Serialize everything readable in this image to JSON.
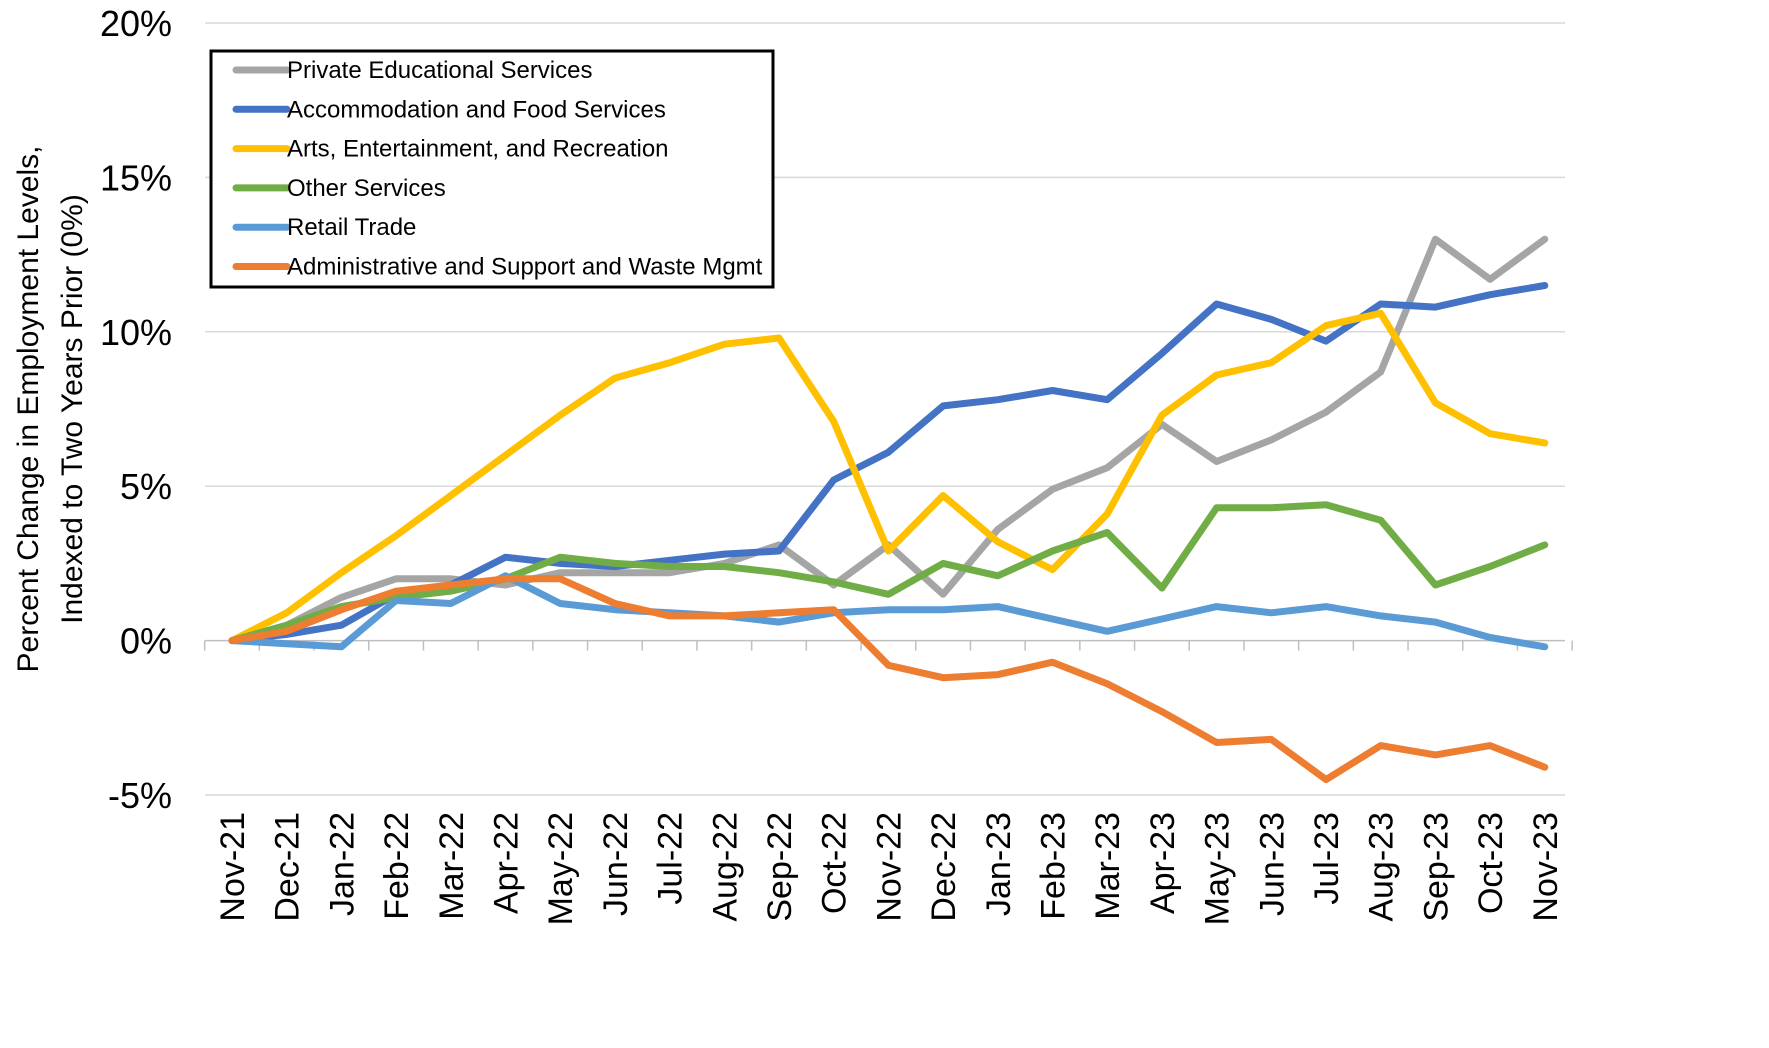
{
  "chart_data": {
    "type": "line",
    "title": "",
    "xlabel": "",
    "ylabel_lines": [
      "Percent Change in Employment Levels,",
      "Indexed to Two Years Prior (0%)"
    ],
    "ylim": [
      -5,
      20
    ],
    "yticks": [
      -5,
      0,
      5,
      10,
      15,
      20
    ],
    "ytick_labels": [
      "-5%",
      "0%",
      "5%",
      "10%",
      "15%",
      "20%"
    ],
    "grid": true,
    "legend_position": "top-left",
    "categories": [
      "Nov-21",
      "Dec-21",
      "Jan-22",
      "Feb-22",
      "Mar-22",
      "Apr-22",
      "May-22",
      "Jun-22",
      "Jul-22",
      "Aug-22",
      "Sep-22",
      "Oct-22",
      "Nov-22",
      "Dec-22",
      "Jan-23",
      "Feb-23",
      "Mar-23",
      "Apr-23",
      "May-23",
      "Jun-23",
      "Jul-23",
      "Aug-23",
      "Sep-23",
      "Oct-23",
      "Nov-23"
    ],
    "series": [
      {
        "name": "Private Educational Services",
        "color": "#a5a5a5",
        "values": [
          0,
          0.5,
          1.4,
          2.0,
          2.0,
          1.8,
          2.2,
          2.2,
          2.2,
          2.5,
          3.1,
          1.8,
          3.1,
          1.5,
          3.6,
          4.9,
          5.6,
          7.0,
          5.8,
          6.5,
          7.4,
          8.7,
          13.0,
          11.7,
          13.0
        ]
      },
      {
        "name": "Accommodation and Food Services",
        "color": "#4472c4",
        "values": [
          0,
          0.2,
          0.5,
          1.5,
          1.8,
          2.7,
          2.5,
          2.4,
          2.6,
          2.8,
          2.9,
          5.2,
          6.1,
          7.6,
          7.8,
          8.1,
          7.8,
          9.3,
          10.9,
          10.4,
          9.7,
          10.9,
          10.8,
          11.2,
          11.5
        ]
      },
      {
        "name": "Arts, Entertainment, and Recreation",
        "color": "#ffc000",
        "values": [
          0,
          0.9,
          2.2,
          3.4,
          4.7,
          6.0,
          7.3,
          8.5,
          9.0,
          9.6,
          9.8,
          7.1,
          2.9,
          4.7,
          3.2,
          2.3,
          4.1,
          7.3,
          8.6,
          9.0,
          10.2,
          10.6,
          7.7,
          6.7,
          6.4
        ]
      },
      {
        "name": "Other Services",
        "color": "#70ad47",
        "values": [
          0,
          0.5,
          1.1,
          1.4,
          1.6,
          2.0,
          2.7,
          2.5,
          2.4,
          2.4,
          2.2,
          1.9,
          1.5,
          2.5,
          2.1,
          2.9,
          3.5,
          1.7,
          4.3,
          4.3,
          4.4,
          3.9,
          1.8,
          2.4,
          3.1
        ]
      },
      {
        "name": "Retail Trade",
        "color": "#5b9bd5",
        "values": [
          0,
          -0.1,
          -0.2,
          1.3,
          1.2,
          2.1,
          1.2,
          1.0,
          0.9,
          0.8,
          0.6,
          0.9,
          1.0,
          1.0,
          1.1,
          0.7,
          0.3,
          0.7,
          1.1,
          0.9,
          1.1,
          0.8,
          0.6,
          0.1,
          -0.2
        ]
      },
      {
        "name": "Administrative and Support and Waste Mgmt",
        "color": "#ed7d31",
        "values": [
          0,
          0.3,
          1.0,
          1.6,
          1.8,
          2.0,
          2.0,
          1.2,
          0.8,
          0.8,
          0.9,
          1.0,
          -0.8,
          -1.2,
          -1.1,
          -0.7,
          -1.4,
          -2.3,
          -3.3,
          -3.2,
          -4.5,
          -3.4,
          -3.7,
          -3.4,
          -4.1
        ]
      }
    ]
  }
}
